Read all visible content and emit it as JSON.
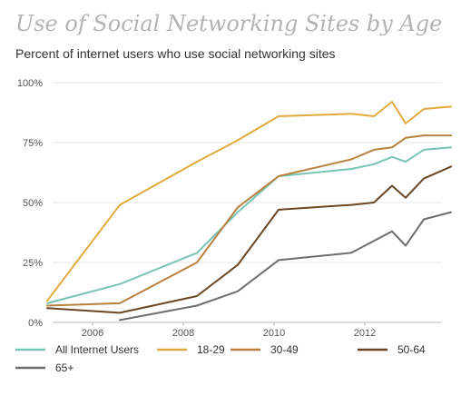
{
  "chart_data": {
    "type": "line",
    "title": "Use of Social Networking Sites by Age",
    "subtitle": "Percent of internet users who use social networking sites",
    "xlabel": "",
    "ylabel": "",
    "ylim": [
      0,
      100
    ],
    "xlim": [
      2005.0,
      2013.9
    ],
    "x_ticks": [
      2006,
      2008,
      2010,
      2012
    ],
    "x_tick_labels": [
      "2006",
      "2008",
      "2010",
      "2012"
    ],
    "y_ticks": [
      0,
      25,
      50,
      75,
      100
    ],
    "y_tick_labels": [
      "0%",
      "25%",
      "50%",
      "75%",
      "100%"
    ],
    "grid": "horizontal",
    "legend_position": "bottom",
    "series": [
      {
        "name": "All Internet Users",
        "color": "#78c4b4",
        "points": [
          [
            2005.0,
            8
          ],
          [
            2006.6,
            16
          ],
          [
            2008.3,
            29
          ],
          [
            2009.2,
            46
          ],
          [
            2010.1,
            61
          ],
          [
            2011.7,
            64
          ],
          [
            2012.2,
            66
          ],
          [
            2012.6,
            69
          ],
          [
            2012.9,
            67
          ],
          [
            2013.3,
            72
          ],
          [
            2013.9,
            73
          ]
        ]
      },
      {
        "name": "18-29",
        "color": "#e0aa3e",
        "points": [
          [
            2005.0,
            9
          ],
          [
            2006.6,
            49
          ],
          [
            2008.3,
            67
          ],
          [
            2009.2,
            76
          ],
          [
            2010.1,
            86
          ],
          [
            2011.7,
            87
          ],
          [
            2012.2,
            86
          ],
          [
            2012.6,
            92
          ],
          [
            2012.9,
            83
          ],
          [
            2013.3,
            89
          ],
          [
            2013.9,
            90
          ]
        ]
      },
      {
        "name": "30-49",
        "color": "#b8813f",
        "points": [
          [
            2005.0,
            7
          ],
          [
            2006.6,
            8
          ],
          [
            2008.3,
            25
          ],
          [
            2009.2,
            48
          ],
          [
            2010.1,
            61
          ],
          [
            2011.7,
            68
          ],
          [
            2012.2,
            72
          ],
          [
            2012.6,
            73
          ],
          [
            2012.9,
            77
          ],
          [
            2013.3,
            78
          ],
          [
            2013.9,
            78
          ]
        ]
      },
      {
        "name": "50-64",
        "color": "#6b4524",
        "points": [
          [
            2005.0,
            6
          ],
          [
            2006.6,
            4
          ],
          [
            2008.3,
            11
          ],
          [
            2009.2,
            24
          ],
          [
            2010.1,
            47
          ],
          [
            2011.7,
            49
          ],
          [
            2012.2,
            50
          ],
          [
            2012.6,
            57
          ],
          [
            2012.9,
            52
          ],
          [
            2013.3,
            60
          ],
          [
            2013.9,
            65
          ]
        ]
      },
      {
        "name": "65+",
        "color": "#6e6e6e",
        "points": [
          [
            2006.6,
            1
          ],
          [
            2008.3,
            7
          ],
          [
            2009.2,
            13
          ],
          [
            2010.1,
            26
          ],
          [
            2011.7,
            29
          ],
          [
            2012.2,
            34
          ],
          [
            2012.6,
            38
          ],
          [
            2012.9,
            32
          ],
          [
            2013.3,
            43
          ],
          [
            2013.9,
            46
          ]
        ]
      }
    ]
  }
}
